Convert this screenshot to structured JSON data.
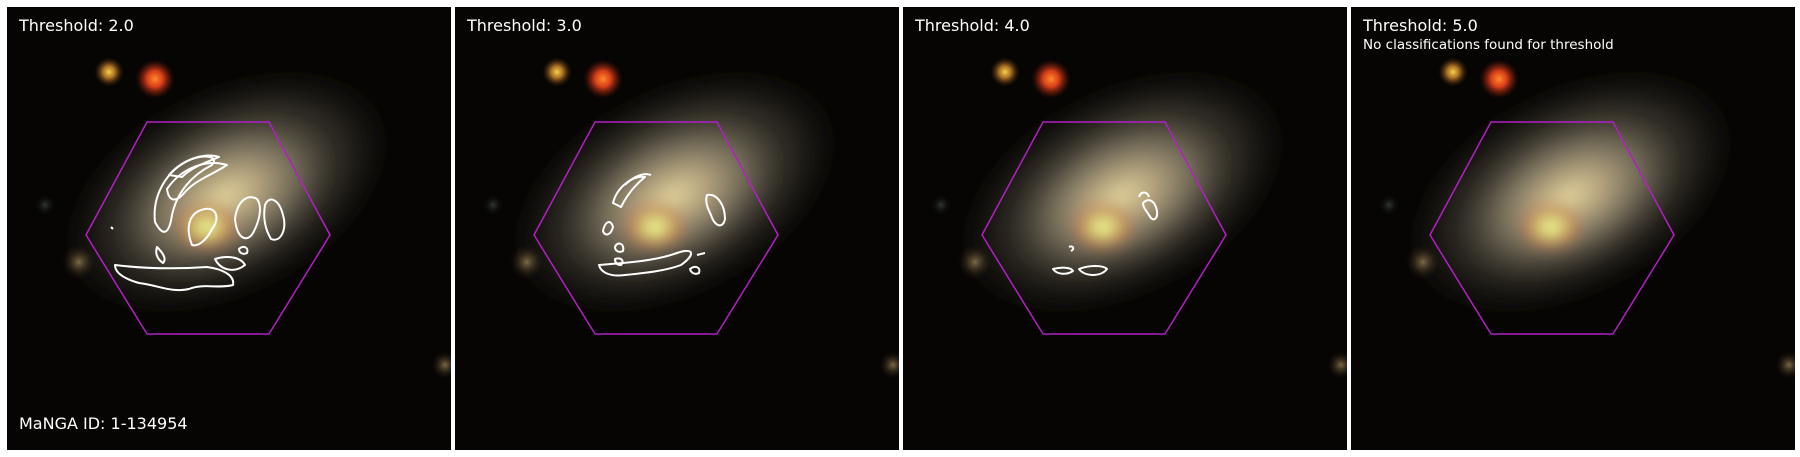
{
  "manga_id": "MaNGA ID: 1-134954",
  "colors": {
    "hexagon": "#b21fc4",
    "contour": "#ffffff",
    "background": "#050403"
  },
  "panels": [
    {
      "title": "Threshold: 2.0",
      "note": ""
    },
    {
      "title": "Threshold: 3.0",
      "note": ""
    },
    {
      "title": "Threshold: 4.0",
      "note": ""
    },
    {
      "title": "Threshold: 5.0",
      "note": "No classifications found for threshold"
    }
  ]
}
